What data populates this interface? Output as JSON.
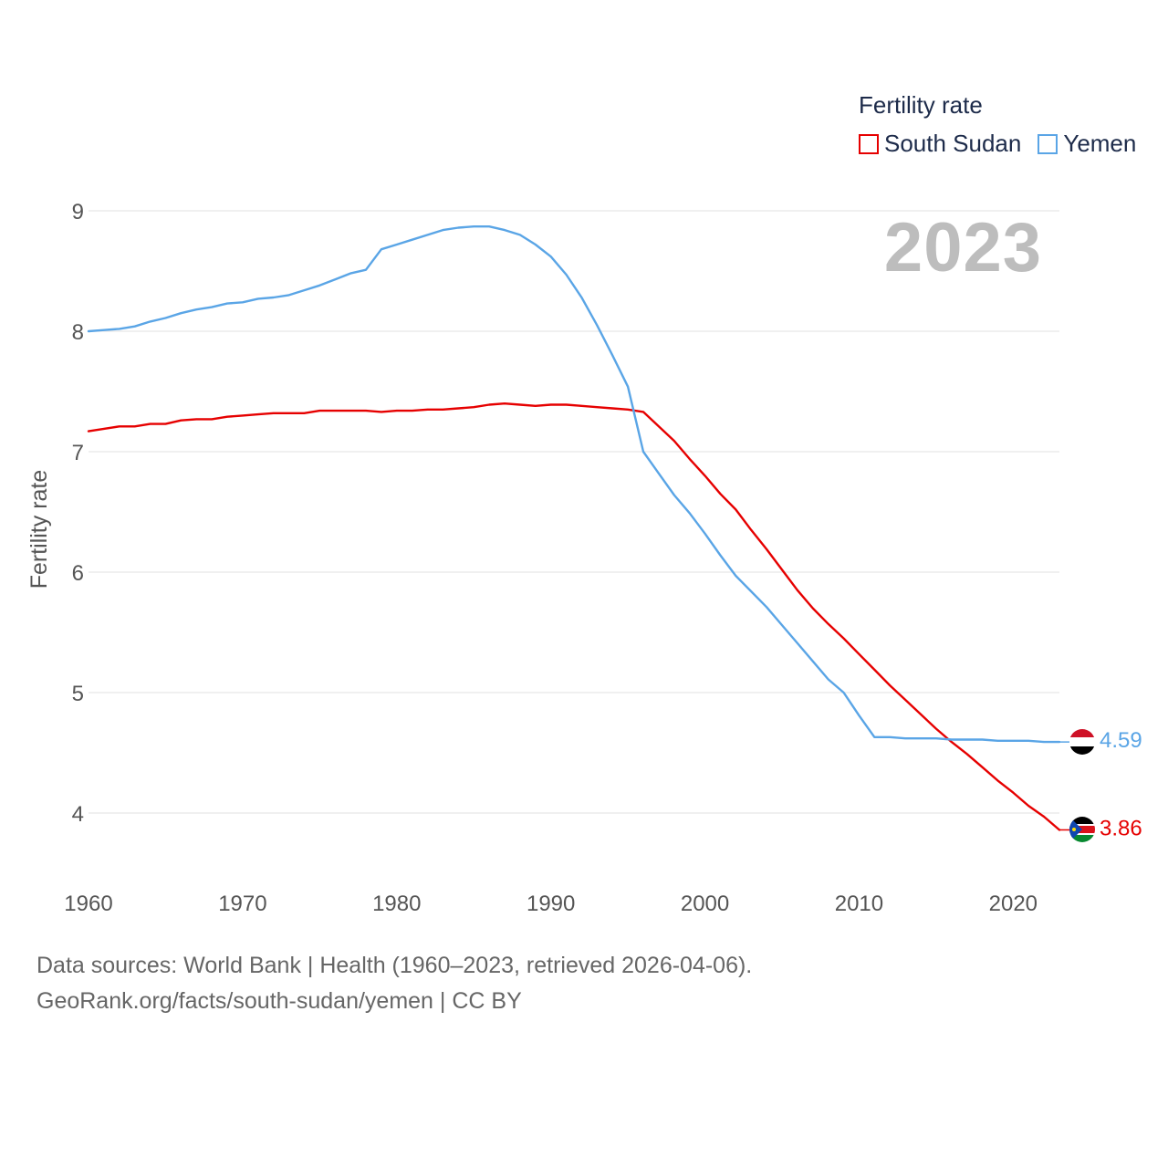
{
  "legend": {
    "title": "Fertility rate",
    "items": [
      {
        "label": "South Sudan",
        "color": "#e60000"
      },
      {
        "label": "Yemen",
        "color": "#5aa5e6"
      }
    ]
  },
  "current_year": "2023",
  "footer": {
    "line1": "Data sources: World Bank | Health (1960–2023, retrieved 2026-04-06).",
    "line2": "GeoRank.org/facts/south-sudan/yemen | CC BY"
  },
  "chart_data": {
    "type": "line",
    "title": "Fertility rate",
    "xlabel": "",
    "ylabel": "Fertility rate",
    "xlim": [
      1960,
      2023
    ],
    "ylim": [
      3.5,
      9.2
    ],
    "x_ticks": [
      1960,
      1970,
      1980,
      1990,
      2000,
      2010,
      2020
    ],
    "y_ticks": [
      4,
      5,
      6,
      7,
      8,
      9
    ],
    "grid": true,
    "legend_position": "top-right",
    "x": [
      1960,
      1961,
      1962,
      1963,
      1964,
      1965,
      1966,
      1967,
      1968,
      1969,
      1970,
      1971,
      1972,
      1973,
      1974,
      1975,
      1976,
      1977,
      1978,
      1979,
      1980,
      1981,
      1982,
      1983,
      1984,
      1985,
      1986,
      1987,
      1988,
      1989,
      1990,
      1991,
      1992,
      1993,
      1994,
      1995,
      1996,
      1997,
      1998,
      1999,
      2000,
      2001,
      2002,
      2003,
      2004,
      2005,
      2006,
      2007,
      2008,
      2009,
      2010,
      2011,
      2012,
      2013,
      2014,
      2015,
      2016,
      2017,
      2018,
      2019,
      2020,
      2021,
      2022,
      2023
    ],
    "series": [
      {
        "name": "South Sudan",
        "color": "#e60000",
        "end_label": "3.86",
        "values": [
          7.17,
          7.19,
          7.21,
          7.21,
          7.23,
          7.23,
          7.26,
          7.27,
          7.27,
          7.29,
          7.3,
          7.31,
          7.32,
          7.32,
          7.32,
          7.34,
          7.34,
          7.34,
          7.34,
          7.33,
          7.34,
          7.34,
          7.35,
          7.35,
          7.36,
          7.37,
          7.39,
          7.4,
          7.39,
          7.38,
          7.39,
          7.39,
          7.38,
          7.37,
          7.36,
          7.35,
          7.33,
          7.21,
          7.09,
          6.94,
          6.8,
          6.65,
          6.52,
          6.35,
          6.19,
          6.02,
          5.85,
          5.7,
          5.57,
          5.45,
          5.32,
          5.19,
          5.06,
          4.94,
          4.82,
          4.7,
          4.59,
          4.49,
          4.38,
          4.27,
          4.17,
          4.06,
          3.97,
          3.86
        ]
      },
      {
        "name": "Yemen",
        "color": "#5aa5e6",
        "end_label": "4.59",
        "values": [
          8.0,
          8.01,
          8.02,
          8.04,
          8.08,
          8.11,
          8.15,
          8.18,
          8.2,
          8.23,
          8.24,
          8.27,
          8.28,
          8.3,
          8.34,
          8.38,
          8.43,
          8.48,
          8.51,
          8.68,
          8.72,
          8.76,
          8.8,
          8.84,
          8.86,
          8.87,
          8.87,
          8.84,
          8.8,
          8.72,
          8.62,
          8.47,
          8.28,
          8.05,
          7.8,
          7.54,
          7.0,
          6.82,
          6.64,
          6.49,
          6.32,
          6.14,
          5.97,
          5.84,
          5.71,
          5.56,
          5.41,
          5.26,
          5.11,
          5.0,
          4.81,
          4.63,
          4.63,
          4.62,
          4.62,
          4.62,
          4.61,
          4.61,
          4.61,
          4.6,
          4.6,
          4.6,
          4.59,
          4.59
        ]
      }
    ]
  }
}
